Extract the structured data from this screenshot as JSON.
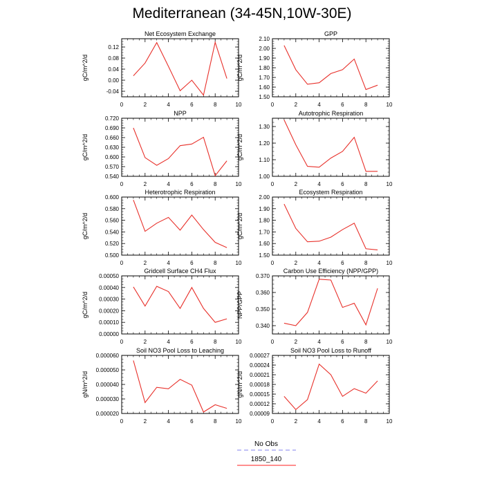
{
  "title": "Mediterranean (34-45N,10W-30E)",
  "legend": {
    "items": [
      {
        "label": "No Obs",
        "color": "#9a9af0",
        "dash": "dashed"
      },
      {
        "label": "1850_140",
        "color": "#ff4a4a",
        "dash": "solid"
      }
    ]
  },
  "colors": {
    "model_line": "#e8302a"
  },
  "chart_data": [
    {
      "type": "line",
      "title": "Net Ecosystem Exchange",
      "ylabel": "gC/m^2/d",
      "xlim": [
        0,
        10
      ],
      "ylim": [
        -0.06,
        0.15
      ],
      "xticks": [
        "0",
        "2",
        "4",
        "6",
        "8",
        "10"
      ],
      "yticks": [
        "-0.04",
        "0.00",
        "0.04",
        "0.08",
        "0.12"
      ],
      "x": [
        1,
        2,
        3,
        4,
        5,
        6,
        7,
        8,
        9
      ],
      "series": [
        {
          "name": "1850_140",
          "values": [
            0.016,
            0.062,
            0.136,
            0.05,
            -0.038,
            0.0,
            -0.054,
            0.137,
            0.006
          ]
        }
      ]
    },
    {
      "type": "line",
      "title": "GPP",
      "ylabel": "gC/m^2/d",
      "xlim": [
        0,
        10
      ],
      "ylim": [
        1.5,
        2.1
      ],
      "xticks": [
        "0",
        "2",
        "4",
        "6",
        "8",
        "10"
      ],
      "yticks": [
        "1.50",
        "1.60",
        "1.70",
        "1.80",
        "1.90",
        "2.00",
        "2.10"
      ],
      "x": [
        1,
        2,
        3,
        4,
        5,
        6,
        7,
        8,
        9
      ],
      "series": [
        {
          "name": "1850_140",
          "values": [
            2.03,
            1.78,
            1.63,
            1.645,
            1.74,
            1.78,
            1.89,
            1.575,
            1.62
          ]
        }
      ]
    },
    {
      "type": "line",
      "title": "NPP",
      "ylabel": "gC/m^2/d",
      "xlim": [
        0,
        10
      ],
      "ylim": [
        0.54,
        0.72
      ],
      "xticks": [
        "0",
        "2",
        "4",
        "6",
        "8",
        "10"
      ],
      "yticks": [
        "0.540",
        "0.570",
        "0.600",
        "0.630",
        "0.660",
        "0.690",
        "0.720"
      ],
      "x": [
        1,
        2,
        3,
        4,
        5,
        6,
        7,
        8,
        9
      ],
      "series": [
        {
          "name": "1850_140",
          "values": [
            0.69,
            0.598,
            0.574,
            0.595,
            0.635,
            0.64,
            0.661,
            0.542,
            0.588
          ]
        }
      ]
    },
    {
      "type": "line",
      "title": "Autotrophic Respiration",
      "ylabel": "gC/m^2/d",
      "xlim": [
        0,
        10
      ],
      "ylim": [
        1.0,
        1.35
      ],
      "xticks": [
        "0",
        "2",
        "4",
        "6",
        "8",
        "10"
      ],
      "yticks": [
        "1.00",
        "1.10",
        "1.20",
        "1.30"
      ],
      "x": [
        1,
        2,
        3,
        4,
        5,
        6,
        7,
        8,
        9
      ],
      "series": [
        {
          "name": "1850_140",
          "values": [
            1.34,
            1.19,
            1.06,
            1.055,
            1.11,
            1.15,
            1.235,
            1.03,
            1.03
          ]
        }
      ]
    },
    {
      "type": "line",
      "title": "Heterotrophic Respiration",
      "ylabel": "gC/m^2/d",
      "xlim": [
        0,
        10
      ],
      "ylim": [
        0.5,
        0.6
      ],
      "xticks": [
        "0",
        "2",
        "4",
        "6",
        "8",
        "10"
      ],
      "yticks": [
        "0.500",
        "0.520",
        "0.540",
        "0.560",
        "0.580",
        "0.600"
      ],
      "x": [
        1,
        2,
        3,
        4,
        5,
        6,
        7,
        8,
        9
      ],
      "series": [
        {
          "name": "1850_140",
          "values": [
            0.595,
            0.541,
            0.555,
            0.565,
            0.543,
            0.569,
            0.544,
            0.522,
            0.513
          ]
        }
      ]
    },
    {
      "type": "line",
      "title": "Ecosystem Respiration",
      "ylabel": "gC/m^2/d",
      "xlim": [
        0,
        10
      ],
      "ylim": [
        1.5,
        2.0
      ],
      "xticks": [
        "0",
        "2",
        "4",
        "6",
        "8",
        "10"
      ],
      "yticks": [
        "1.50",
        "1.60",
        "1.70",
        "1.80",
        "1.90",
        "2.00"
      ],
      "x": [
        1,
        2,
        3,
        4,
        5,
        6,
        7,
        8,
        9
      ],
      "series": [
        {
          "name": "1850_140",
          "values": [
            1.94,
            1.73,
            1.615,
            1.62,
            1.655,
            1.72,
            1.775,
            1.555,
            1.545
          ]
        }
      ]
    },
    {
      "type": "line",
      "title": "Gridcell Surface CH4 Flux",
      "ylabel": "gC/m^2/d",
      "xlim": [
        0,
        10
      ],
      "ylim": [
        0.0,
        0.0005
      ],
      "xticks": [
        "0",
        "2",
        "4",
        "6",
        "8",
        "10"
      ],
      "yticks": [
        "0.00000",
        "0.00010",
        "0.00020",
        "0.00030",
        "0.00040",
        "0.00050"
      ],
      "x": [
        1,
        2,
        3,
        4,
        5,
        6,
        7,
        8,
        9
      ],
      "series": [
        {
          "name": "1850_140",
          "values": [
            0.000405,
            0.00024,
            0.00041,
            0.000365,
            0.00022,
            0.0004,
            0.00022,
            0.0001,
            0.00013
          ]
        }
      ]
    },
    {
      "type": "line",
      "title": "Carbon Use Efficiency (NPP/GPP)",
      "ylabel": "NPP/GPP",
      "xlim": [
        0,
        10
      ],
      "ylim": [
        0.335,
        0.37
      ],
      "xticks": [
        "0",
        "2",
        "4",
        "6",
        "8",
        "10"
      ],
      "yticks": [
        "0.340",
        "0.350",
        "0.360",
        "0.370"
      ],
      "x": [
        1,
        2,
        3,
        4,
        5,
        6,
        7,
        8,
        9
      ],
      "series": [
        {
          "name": "1850_140",
          "values": [
            0.3415,
            0.34,
            0.348,
            0.368,
            0.3675,
            0.351,
            0.3535,
            0.3405,
            0.3625
          ]
        }
      ]
    },
    {
      "type": "line",
      "title": "Soil NO3 Pool Loss to Leaching",
      "ylabel": "gN/m^2/d",
      "xlim": [
        0,
        10
      ],
      "ylim": [
        2e-05,
        6e-05
      ],
      "xticks": [
        "0",
        "2",
        "4",
        "6",
        "8",
        "10"
      ],
      "yticks": [
        "0.000020",
        "0.000030",
        "0.000040",
        "0.000050",
        "0.000060"
      ],
      "x": [
        1,
        2,
        3,
        4,
        5,
        6,
        7,
        8,
        9
      ],
      "series": [
        {
          "name": "1850_140",
          "values": [
            5.65e-05,
            2.75e-05,
            3.8e-05,
            3.7e-05,
            4.35e-05,
            3.95e-05,
            2.1e-05,
            2.6e-05,
            2.35e-05
          ]
        }
      ]
    },
    {
      "type": "line",
      "title": "Soil NO3 Pool Loss to Runoff",
      "ylabel": "gN/m^2/d",
      "xlim": [
        0,
        10
      ],
      "ylim": [
        9e-05,
        0.00027
      ],
      "xticks": [
        "0",
        "2",
        "4",
        "6",
        "8",
        "10"
      ],
      "yticks": [
        "0.00009",
        "0.00012",
        "0.00015",
        "0.00018",
        "0.00021",
        "0.00024",
        "0.00027"
      ],
      "x": [
        1,
        2,
        3,
        4,
        5,
        6,
        7,
        8,
        9
      ],
      "series": [
        {
          "name": "1850_140",
          "values": [
            0.000143,
            0.000102,
            0.000133,
            0.000243,
            0.00021,
            0.000143,
            0.000167,
            0.000153,
            0.000191
          ]
        }
      ]
    }
  ]
}
